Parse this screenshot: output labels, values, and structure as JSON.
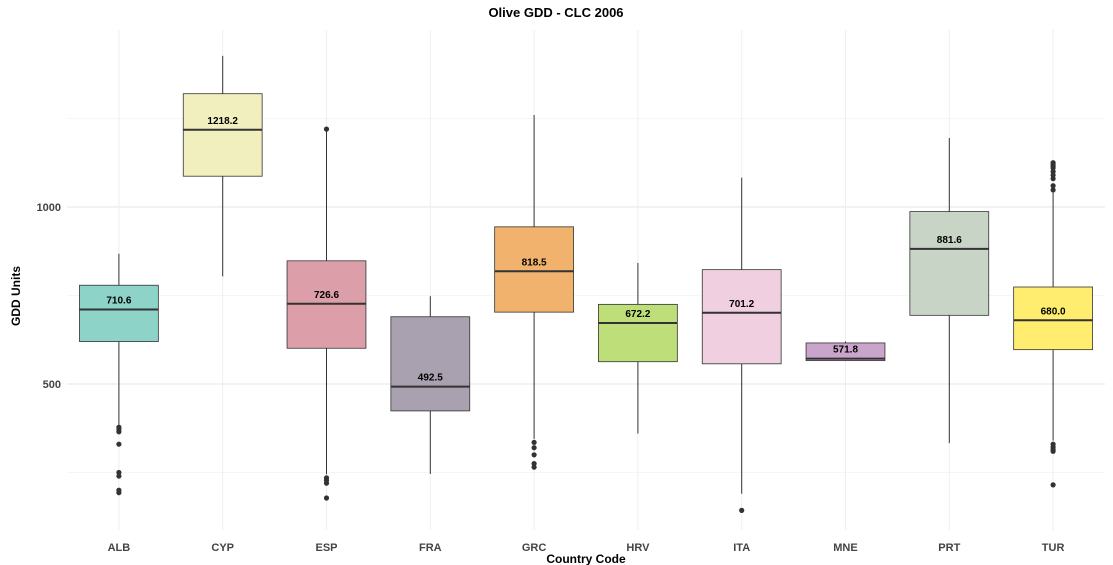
{
  "chart_data": {
    "type": "box",
    "title": "Olive GDD - CLC 2006",
    "xlabel": "Country Code",
    "ylabel": "GDD Units",
    "yticks": [
      500,
      1000
    ],
    "ylim": [
      120,
      1530
    ],
    "grid": true,
    "legend": "none",
    "categories": [
      "ALB",
      "CYP",
      "ESP",
      "FRA",
      "GRC",
      "HRV",
      "ITA",
      "MNE",
      "PRT",
      "TUR"
    ],
    "boxes": [
      {
        "category": "ALB",
        "min": 385,
        "q1": 620,
        "median": 710.6,
        "q3": 779,
        "max": 868,
        "outliers": [
          378,
          372,
          365,
          330,
          250,
          240,
          200,
          193
        ],
        "label": "710.6",
        "color": "#8dd3c7"
      },
      {
        "category": "CYP",
        "min": 804,
        "q1": 1087,
        "median": 1218.2,
        "q3": 1320,
        "max": 1427,
        "outliers": [],
        "label": "1218.2",
        "color": "#f1efbe"
      },
      {
        "category": "ESP",
        "min": 245,
        "q1": 601,
        "median": 726.6,
        "q3": 848,
        "max": 1220,
        "outliers": [
          1220,
          235,
          228,
          220,
          178
        ],
        "label": "726.6",
        "color": "#dc9ea8"
      },
      {
        "category": "FRA",
        "min": 246,
        "q1": 424,
        "median": 492.5,
        "q3": 690,
        "max": 748,
        "outliers": [],
        "label": "492.5",
        "color": "#a9a1b0"
      },
      {
        "category": "GRC",
        "min": 345,
        "q1": 703,
        "median": 818.5,
        "q3": 944,
        "max": 1260,
        "outliers": [
          335,
          320,
          300,
          275,
          265
        ],
        "label": "818.5",
        "color": "#f0b26c"
      },
      {
        "category": "HRV",
        "min": 360,
        "q1": 563,
        "median": 672.2,
        "q3": 725,
        "max": 842,
        "outliers": [],
        "label": "672.2",
        "color": "#bdde79"
      },
      {
        "category": "ITA",
        "min": 190,
        "q1": 557,
        "median": 701.2,
        "q3": 823,
        "max": 1083,
        "outliers": [
          143
        ],
        "label": "701.2",
        "color": "#efcfe0"
      },
      {
        "category": "MNE",
        "min": 565,
        "q1": 566,
        "median": 571.8,
        "q3": 616,
        "max": 620,
        "outliers": [],
        "label": "571.8",
        "color": "#c9a5cb"
      },
      {
        "category": "PRT",
        "min": 333,
        "q1": 694,
        "median": 881.6,
        "q3": 987,
        "max": 1195,
        "outliers": [],
        "label": "881.6",
        "color": "#c8d4c6"
      },
      {
        "category": "TUR",
        "min": 340,
        "q1": 597,
        "median": 680.0,
        "q3": 774,
        "max": 1040,
        "outliers": [
          1125,
          1120,
          1115,
          1110,
          1100,
          1090,
          1080,
          1060,
          1048,
          330,
          322,
          315,
          310,
          215
        ],
        "label": "680.0",
        "color": "#ffed6f"
      }
    ]
  }
}
